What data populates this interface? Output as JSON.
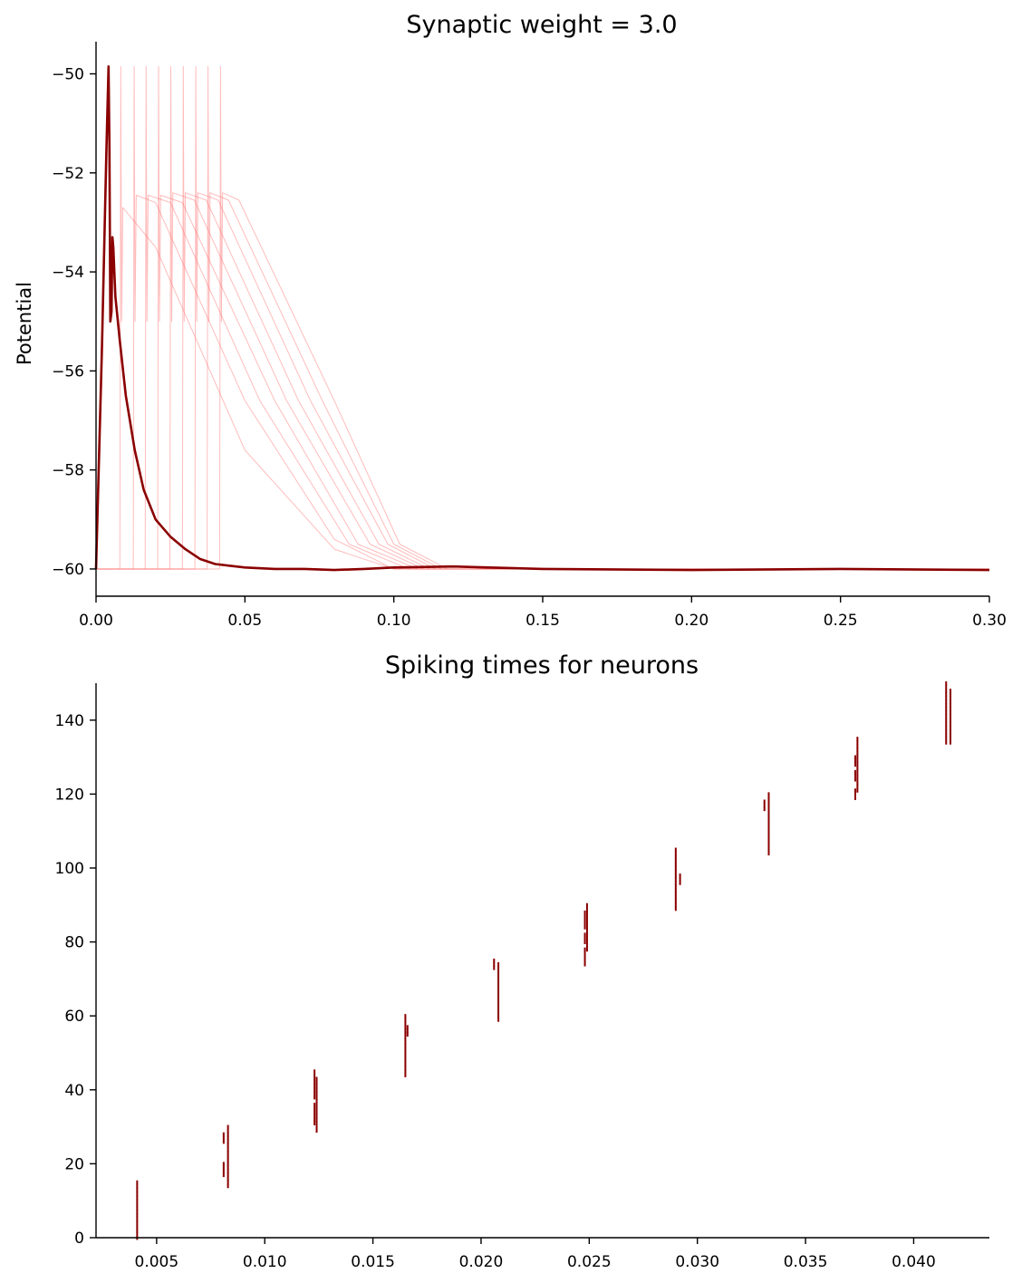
{
  "chart_data": [
    {
      "type": "line",
      "title": "Synaptic weight = 3.0",
      "xlabel": "",
      "ylabel": "Potential",
      "xlim": [
        0.0,
        0.3
      ],
      "ylim": [
        -60.55,
        -49.35
      ],
      "xticks": [
        "0.00",
        "0.05",
        "0.10",
        "0.15",
        "0.20",
        "0.25",
        "0.30"
      ],
      "yticks": [
        "−60",
        "−58",
        "−56",
        "−54",
        "−52",
        "−50"
      ],
      "xtick_values": [
        0.0,
        0.05,
        0.1,
        0.15,
        0.2,
        0.25,
        0.3
      ],
      "ytick_values": [
        -60,
        -58,
        -56,
        -54,
        -52,
        -50
      ],
      "grid": false,
      "colors": {
        "mean": "#8b0000",
        "traces": "#ff6b6b"
      },
      "series": [
        {
          "role": "mean",
          "x": [
            0.0,
            0.002,
            0.0035,
            0.0042,
            0.0045,
            0.0048,
            0.0052,
            0.0055,
            0.0058,
            0.0065,
            0.008,
            0.01,
            0.013,
            0.016,
            0.02,
            0.025,
            0.03,
            0.035,
            0.04,
            0.05,
            0.06,
            0.07,
            0.08,
            0.09,
            0.1,
            0.12,
            0.15,
            0.2,
            0.25,
            0.3
          ],
          "y": [
            -60.0,
            -55.5,
            -51.5,
            -49.85,
            -51.5,
            -55.0,
            -54.8,
            -53.3,
            -53.5,
            -54.5,
            -55.4,
            -56.5,
            -57.6,
            -58.4,
            -59.0,
            -59.35,
            -59.6,
            -59.8,
            -59.9,
            -59.97,
            -60.0,
            -60.0,
            -60.02,
            -60.0,
            -59.97,
            -59.95,
            -60.0,
            -60.02,
            -60.0,
            -60.02
          ]
        },
        {
          "role": "trace",
          "x": [
            0.0,
            0.008,
            0.0083,
            0.0086,
            0.009,
            0.02,
            0.05,
            0.08,
            0.1,
            0.2,
            0.3
          ],
          "y": [
            -60.0,
            -60.0,
            -49.85,
            -55.0,
            -52.7,
            -53.5,
            -57.6,
            -59.6,
            -60.0,
            -60.0,
            -60.0
          ]
        },
        {
          "role": "trace",
          "x": [
            0.0,
            0.0125,
            0.0128,
            0.0131,
            0.0135,
            0.02,
            0.05,
            0.08,
            0.1,
            0.2,
            0.3
          ],
          "y": [
            -60.0,
            -60.0,
            -49.85,
            -55.0,
            -52.45,
            -52.6,
            -56.6,
            -59.4,
            -60.0,
            -60.0,
            -60.0
          ]
        },
        {
          "role": "trace",
          "x": [
            0.0,
            0.0165,
            0.0168,
            0.0171,
            0.0175,
            0.025,
            0.055,
            0.085,
            0.105,
            0.2,
            0.3
          ],
          "y": [
            -60.0,
            -60.0,
            -49.85,
            -55.0,
            -52.45,
            -52.6,
            -56.6,
            -59.5,
            -60.0,
            -60.0,
            -60.0
          ]
        },
        {
          "role": "trace",
          "x": [
            0.0,
            0.0207,
            0.021,
            0.0213,
            0.0217,
            0.029,
            0.06,
            0.088,
            0.108,
            0.2,
            0.3
          ],
          "y": [
            -60.0,
            -60.0,
            -49.85,
            -55.0,
            -52.45,
            -52.6,
            -56.6,
            -59.5,
            -60.0,
            -60.0,
            -60.0
          ]
        },
        {
          "role": "trace",
          "x": [
            0.0,
            0.0248,
            0.0251,
            0.0254,
            0.0258,
            0.033,
            0.064,
            0.092,
            0.11,
            0.2,
            0.3
          ],
          "y": [
            -60.0,
            -60.0,
            -49.85,
            -55.0,
            -52.4,
            -52.55,
            -56.6,
            -59.5,
            -60.0,
            -60.0,
            -60.0
          ]
        },
        {
          "role": "trace",
          "x": [
            0.0,
            0.029,
            0.0293,
            0.0296,
            0.03,
            0.037,
            0.068,
            0.095,
            0.112,
            0.2,
            0.3
          ],
          "y": [
            -60.0,
            -60.0,
            -49.85,
            -55.0,
            -52.4,
            -52.55,
            -56.6,
            -59.5,
            -60.0,
            -60.0,
            -60.0
          ]
        },
        {
          "role": "trace",
          "x": [
            0.0,
            0.0332,
            0.0335,
            0.0338,
            0.0342,
            0.041,
            0.072,
            0.098,
            0.114,
            0.2,
            0.3
          ],
          "y": [
            -60.0,
            -60.0,
            -49.85,
            -55.0,
            -52.4,
            -52.55,
            -56.6,
            -59.5,
            -60.0,
            -60.0,
            -60.0
          ]
        },
        {
          "role": "trace",
          "x": [
            0.0,
            0.0373,
            0.0376,
            0.0379,
            0.0383,
            0.0445,
            0.076,
            0.1,
            0.116,
            0.2,
            0.3
          ],
          "y": [
            -60.0,
            -60.0,
            -49.85,
            -55.0,
            -52.4,
            -52.55,
            -56.6,
            -59.5,
            -60.0,
            -60.0,
            -60.0
          ]
        },
        {
          "role": "trace",
          "x": [
            0.0,
            0.0415,
            0.0418,
            0.0421,
            0.0425,
            0.048,
            0.08,
            0.102,
            0.118,
            0.2,
            0.3
          ],
          "y": [
            -60.0,
            -60.0,
            -49.85,
            -55.0,
            -52.4,
            -52.55,
            -56.6,
            -59.5,
            -60.0,
            -60.0,
            -60.0
          ]
        }
      ]
    },
    {
      "type": "scatter",
      "title": "Spiking times for neurons",
      "xlabel": "",
      "ylabel": "",
      "xlim": [
        0.0022,
        0.0435
      ],
      "ylim": [
        0,
        150
      ],
      "xticks": [
        "0.005",
        "0.010",
        "0.015",
        "0.020",
        "0.025",
        "0.030",
        "0.035",
        "0.040"
      ],
      "yticks": [
        "0",
        "20",
        "40",
        "60",
        "80",
        "100",
        "120",
        "140"
      ],
      "xtick_values": [
        0.005,
        0.01,
        0.015,
        0.02,
        0.025,
        0.03,
        0.035,
        0.04
      ],
      "ytick_values": [
        0,
        20,
        40,
        60,
        80,
        100,
        120,
        140
      ],
      "grid": false,
      "marker": "vertical line",
      "colors": {
        "spikes": "#8b0000"
      },
      "spikes": [
        {
          "time": 0.0041,
          "neurons": [
            0,
            1,
            2,
            3,
            4,
            5,
            6,
            7,
            8,
            9,
            10,
            11,
            12,
            13,
            14,
            15
          ]
        },
        {
          "time": 0.0081,
          "neurons": [
            17,
            18,
            19,
            20,
            26,
            27,
            28
          ]
        },
        {
          "time": 0.0083,
          "neurons": [
            14,
            15,
            16,
            17,
            18,
            19,
            20,
            21,
            22,
            23,
            24,
            25,
            26,
            27,
            28,
            29,
            30
          ]
        },
        {
          "time": 0.0123,
          "neurons": [
            31,
            32,
            33,
            34,
            35,
            36,
            38,
            39,
            40,
            41,
            42,
            43,
            44,
            45
          ]
        },
        {
          "time": 0.0124,
          "neurons": [
            29,
            30,
            31,
            32,
            33,
            34,
            35,
            36,
            37,
            38,
            39,
            40,
            41,
            42,
            43
          ]
        },
        {
          "time": 0.0165,
          "neurons": [
            44,
            45,
            46,
            47,
            48,
            49,
            50,
            51,
            52,
            53,
            54,
            55,
            56,
            57,
            58,
            59,
            60
          ]
        },
        {
          "time": 0.0166,
          "neurons": [
            55,
            56,
            57
          ]
        },
        {
          "time": 0.0206,
          "neurons": [
            73,
            74,
            75
          ]
        },
        {
          "time": 0.0208,
          "neurons": [
            59,
            60,
            61,
            62,
            63,
            64,
            65,
            66,
            67,
            68,
            69,
            70,
            71,
            72,
            73,
            74
          ]
        },
        {
          "time": 0.0248,
          "neurons": [
            74,
            75,
            76,
            77,
            78,
            80,
            81,
            82,
            84,
            85,
            86,
            87,
            88
          ]
        },
        {
          "time": 0.0249,
          "neurons": [
            78,
            79,
            80,
            81,
            82,
            83,
            84,
            85,
            86,
            87,
            88,
            89,
            90
          ]
        },
        {
          "time": 0.029,
          "neurons": [
            89,
            90,
            91,
            92,
            93,
            94,
            95,
            96,
            97,
            98,
            99,
            100,
            101,
            102,
            103,
            104,
            105
          ]
        },
        {
          "time": 0.0292,
          "neurons": [
            96,
            97,
            98
          ]
        },
        {
          "time": 0.0331,
          "neurons": [
            116,
            117,
            118
          ]
        },
        {
          "time": 0.0333,
          "neurons": [
            104,
            105,
            106,
            107,
            108,
            109,
            110,
            111,
            112,
            113,
            114,
            115,
            116,
            117,
            118,
            119,
            120
          ]
        },
        {
          "time": 0.0373,
          "neurons": [
            119,
            120,
            121,
            124,
            125,
            126,
            128,
            129,
            130
          ]
        },
        {
          "time": 0.0374,
          "neurons": [
            121,
            122,
            123,
            124,
            125,
            126,
            127,
            128,
            129,
            130,
            131,
            132,
            133,
            134,
            135
          ]
        },
        {
          "time": 0.0415,
          "neurons": [
            134,
            135,
            136,
            137,
            138,
            139,
            140,
            141,
            142,
            143,
            144,
            145,
            146,
            147,
            148,
            149,
            150
          ]
        },
        {
          "time": 0.0417,
          "neurons": [
            134,
            135,
            136,
            137,
            138,
            139,
            140,
            141,
            142,
            143,
            144,
            145,
            146,
            147,
            148
          ]
        }
      ]
    }
  ]
}
